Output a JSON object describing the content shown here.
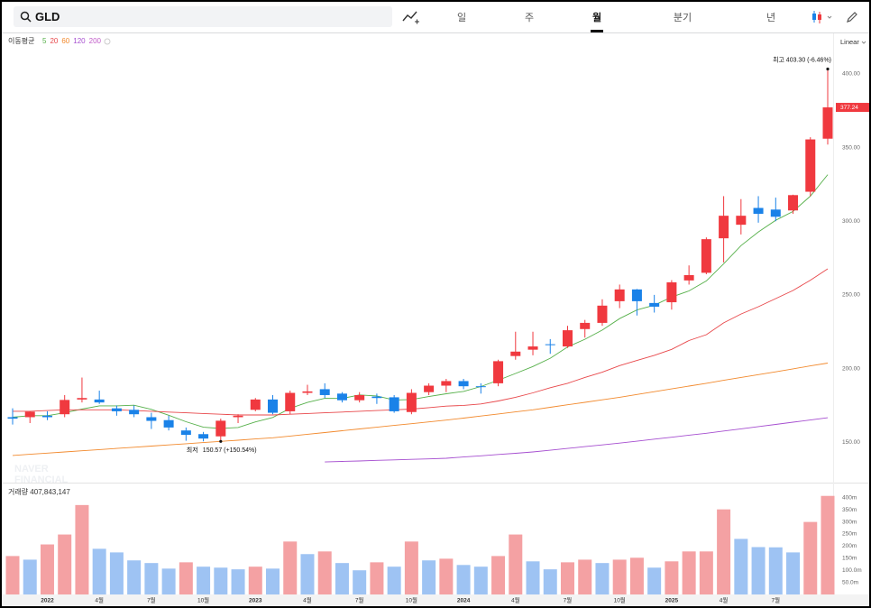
{
  "header": {
    "search": "GLD",
    "tabs": [
      "일",
      "주",
      "월",
      "분기",
      "년"
    ],
    "active_tab": 2
  },
  "ma_label": "이동평균",
  "scale": "Linear",
  "watermark": [
    "NAVER",
    "FINANCIAL"
  ],
  "chart_data": [
    {
      "type": "candlestick",
      "categories": [
        null,
        null,
        "2022",
        null,
        null,
        "4월",
        null,
        null,
        "7월",
        null,
        null,
        "10월",
        null,
        null,
        "2023",
        null,
        null,
        "4월",
        null,
        null,
        "7월",
        null,
        null,
        "10월",
        null,
        null,
        "2024",
        null,
        null,
        "4월",
        null,
        null,
        "7월",
        null,
        null,
        "10월",
        null,
        null,
        "2025",
        null,
        null,
        "4월",
        null,
        null,
        "7월",
        null,
        null,
        null
      ],
      "open": [
        167,
        167,
        168,
        169,
        179,
        179,
        173,
        172,
        167,
        165,
        158,
        155.5,
        154,
        167,
        172,
        179,
        171,
        183.5,
        186,
        183,
        178.5,
        181,
        180.5,
        170.5,
        184,
        188.4,
        191.5,
        188,
        190,
        208.5,
        212.8,
        216.5,
        215,
        226.8,
        231,
        245.7,
        253.7,
        244.5,
        245,
        259.8,
        265,
        288.4,
        297.6,
        309,
        307.9,
        307.3,
        320,
        356
      ],
      "high": [
        173,
        171,
        171,
        182,
        193.9,
        185,
        175,
        175,
        170,
        168,
        160,
        157,
        166,
        169,
        180,
        182,
        185,
        189,
        190,
        184,
        184,
        183,
        182,
        186,
        190,
        193,
        193,
        190,
        206,
        225,
        225,
        220,
        229,
        233,
        247,
        257,
        254,
        250,
        260,
        270,
        289,
        317,
        315,
        317,
        316,
        318,
        357,
        403.3
      ],
      "low": [
        162,
        163,
        165,
        167,
        177,
        176,
        168,
        167,
        159,
        158,
        151,
        150.6,
        150.57,
        163,
        171,
        169,
        169,
        182,
        180,
        177,
        177,
        176,
        170,
        169,
        182,
        184,
        186,
        183,
        188,
        206,
        209,
        210,
        214,
        221,
        229,
        241,
        236,
        238,
        240,
        257,
        264,
        272,
        291,
        299,
        300,
        305,
        317,
        352
      ],
      "close": [
        166,
        170.7,
        167,
        178.7,
        180,
        177,
        171,
        169,
        164.5,
        160,
        155,
        152.5,
        164.6,
        168,
        179,
        170,
        183.5,
        184.5,
        182,
        178.5,
        182,
        180,
        171,
        183.5,
        188.4,
        191.5,
        188,
        187.5,
        205,
        211.5,
        215,
        216,
        226,
        231,
        242.7,
        253.7,
        245.7,
        242,
        258.5,
        263.4,
        287.8,
        303.7,
        303.7,
        305,
        303,
        317.7,
        355.5,
        377.24
      ],
      "up_color": "#f0393f",
      "down_color": "#1a82e8",
      "series": [
        {
          "name": "5",
          "color": "#56b04a",
          "values": [
            167,
            168,
            168,
            170,
            172.5,
            174.7,
            174.7,
            175.1,
            172.3,
            168.3,
            163.9,
            160.2,
            159.3,
            160.0,
            163.8,
            166.8,
            173.0,
            177.0,
            179.8,
            179.7,
            182.1,
            181.4,
            178.7,
            179.0,
            181.0,
            182.9,
            184.5,
            187.8,
            192.1,
            196.7,
            201.4,
            207.0,
            214.7,
            219.9,
            226.1,
            233.9,
            239.8,
            243.0,
            248.5,
            252.7,
            259.5,
            271.1,
            283.4,
            292.7,
            300.6,
            306.6,
            317.0,
            331.6
          ]
        },
        {
          "name": "20",
          "color": "#e8474a",
          "values": [
            171,
            171,
            171.5,
            172,
            172,
            172,
            172,
            171.5,
            171,
            170.5,
            170,
            169.5,
            169,
            168.5,
            168.5,
            168.5,
            169,
            169.5,
            170,
            170.5,
            171,
            171.5,
            172,
            172.5,
            173.5,
            174.5,
            175,
            176,
            178,
            180.5,
            183.5,
            187,
            190,
            194,
            197.5,
            202,
            205.5,
            209,
            213,
            219,
            223,
            231,
            237,
            242,
            247.5,
            253,
            260,
            267.7
          ]
        },
        {
          "name": "60",
          "color": "#f28a2e",
          "values": [
            141,
            141.8,
            142.6,
            143.4,
            144.2,
            145,
            145.8,
            146.6,
            147.4,
            148.2,
            149,
            149.8,
            150.6,
            151.4,
            152.2,
            153,
            154.2,
            155.4,
            156.6,
            157.8,
            159,
            160.2,
            161.4,
            162.6,
            163.8,
            165,
            166.4,
            167.8,
            169.2,
            170.6,
            172,
            173.7,
            175.4,
            177.1,
            178.8,
            180.5,
            182.4,
            184.3,
            186.2,
            188.1,
            190,
            192,
            194,
            195.9,
            197.8,
            199.8,
            201.8,
            203.7
          ]
        },
        {
          "name": "120",
          "color": "#a64fd0",
          "values": [
            null,
            null,
            null,
            null,
            null,
            null,
            null,
            null,
            null,
            null,
            null,
            null,
            null,
            null,
            null,
            null,
            null,
            null,
            136.6,
            137,
            137.3,
            137.7,
            138,
            138.4,
            138.7,
            139.1,
            140,
            140.8,
            141.7,
            142.5,
            143.4,
            144.6,
            145.8,
            147,
            148.2,
            149.4,
            150.7,
            152.1,
            153.4,
            154.8,
            156.1,
            157.6,
            159.1,
            160.6,
            162.1,
            163.6,
            165.1,
            166.6
          ]
        },
        {
          "name": "200",
          "color": "#c05ac8",
          "values": [
            null,
            null,
            null,
            null,
            null,
            null,
            null,
            null,
            null,
            null,
            null,
            null,
            null,
            null,
            null,
            null,
            null,
            null,
            null,
            null,
            null,
            null,
            null,
            null,
            null,
            null,
            null,
            null,
            null,
            null,
            null,
            null,
            null,
            null,
            null,
            null,
            null,
            null,
            null,
            null,
            null,
            null,
            null,
            null,
            null,
            null,
            null,
            null
          ]
        }
      ],
      "ylim": [
        122.6,
        424.4
      ],
      "yticks": [
        {
          "value": 150,
          "label": "150.00"
        },
        {
          "value": 200,
          "label": "200.00"
        },
        {
          "value": 250,
          "label": "250.00"
        },
        {
          "value": 300,
          "label": "300.00"
        },
        {
          "value": 350,
          "label": "350.00"
        },
        {
          "value": 400,
          "label": "400.00"
        }
      ],
      "grid": false,
      "annotations": {
        "high_label": "최고",
        "high_text": "403.30 (-6.46%)",
        "low_label": "최저",
        "low_text": "150.57 (+150.54%)"
      }
    },
    {
      "type": "bar",
      "title": "거래량 407,843,147",
      "values": [
        159,
        144,
        207,
        248,
        370,
        189,
        174,
        141,
        130,
        107,
        133,
        115,
        111,
        104,
        115,
        107,
        219,
        167,
        178,
        130,
        100,
        133,
        115,
        219,
        141,
        148,
        122,
        115,
        159,
        248,
        137,
        104,
        133,
        144,
        130,
        144,
        152,
        111,
        137,
        178,
        178,
        352,
        230,
        196,
        195,
        174,
        300,
        407.8
      ],
      "up_color": "#f4a1a3",
      "down_color": "#9ec3f3",
      "ylim": [
        0,
        459
      ],
      "yticks": [
        {
          "value": 50,
          "label": "50.0m"
        },
        {
          "value": 100,
          "label": "100.0m"
        },
        {
          "value": 150,
          "label": "150m"
        },
        {
          "value": 200,
          "label": "200m"
        },
        {
          "value": 250,
          "label": "250m"
        },
        {
          "value": 300,
          "label": "300m"
        },
        {
          "value": 350,
          "label": "350m"
        },
        {
          "value": 400,
          "label": "400m"
        }
      ],
      "grid": false
    }
  ]
}
